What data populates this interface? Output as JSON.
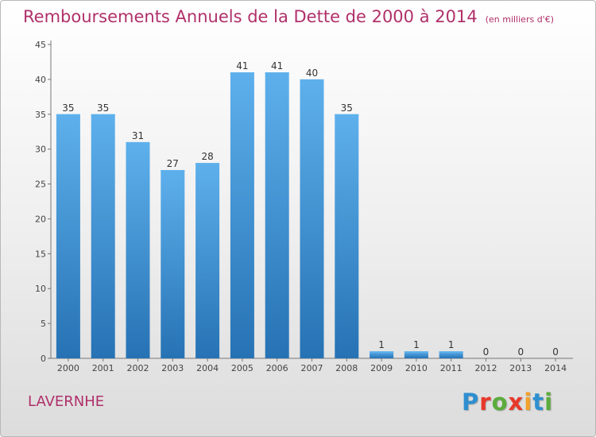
{
  "title": "Remboursements Annuels de la Dette de 2000 à 2014",
  "subtitle": "(en milliers d'€)",
  "commune": "LAVERNHE",
  "logo": {
    "letters": [
      "P",
      "r",
      "o",
      "x",
      "i",
      "t",
      "i"
    ],
    "colors": [
      "#2e8fd0",
      "#e8382a",
      "#5aac3c",
      "#e8382a",
      "#f2a12a",
      "#2e8fd0",
      "#5aac3c"
    ]
  },
  "colors": {
    "bar": "#3a8fd6",
    "bar_light": "#5eb0ec",
    "bar_dark": "#2672b4",
    "title": "#b0306a"
  },
  "chart_data": {
    "type": "bar",
    "categories": [
      "2000",
      "2001",
      "2002",
      "2003",
      "2004",
      "2005",
      "2006",
      "2007",
      "2008",
      "2009",
      "2010",
      "2011",
      "2012",
      "2013",
      "2014"
    ],
    "values": [
      35,
      35,
      31,
      27,
      28,
      41,
      41,
      40,
      35,
      1,
      1,
      1,
      0,
      0,
      0
    ],
    "data_labels": [
      "35",
      "35",
      "31",
      "27",
      "28",
      "41",
      "41",
      "40",
      "35",
      "1",
      "1",
      "1",
      "0",
      "0",
      "0"
    ],
    "yticks": [
      0,
      5,
      10,
      15,
      20,
      25,
      30,
      35,
      40,
      45
    ],
    "ylim": [
      0,
      45
    ],
    "grid": false,
    "legend": "none"
  }
}
